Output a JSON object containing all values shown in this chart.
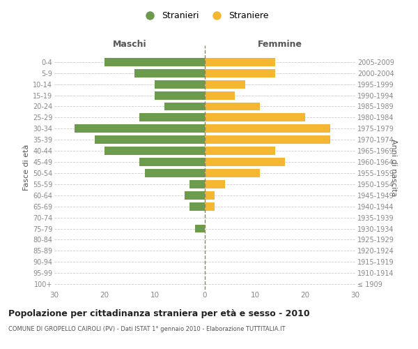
{
  "age_groups": [
    "0-4",
    "5-9",
    "10-14",
    "15-19",
    "20-24",
    "25-29",
    "30-34",
    "35-39",
    "40-44",
    "45-49",
    "50-54",
    "55-59",
    "60-64",
    "65-69",
    "70-74",
    "75-79",
    "80-84",
    "85-89",
    "90-94",
    "95-99",
    "100+"
  ],
  "birth_years": [
    "2005-2009",
    "2000-2004",
    "1995-1999",
    "1990-1994",
    "1985-1989",
    "1980-1984",
    "1975-1979",
    "1970-1974",
    "1965-1969",
    "1960-1964",
    "1955-1959",
    "1950-1954",
    "1945-1949",
    "1940-1944",
    "1935-1939",
    "1930-1934",
    "1925-1929",
    "1920-1924",
    "1915-1919",
    "1910-1914",
    "≤ 1909"
  ],
  "maschi": [
    20,
    14,
    10,
    10,
    8,
    13,
    26,
    22,
    20,
    13,
    12,
    3,
    4,
    3,
    0,
    2,
    0,
    0,
    0,
    0,
    0
  ],
  "femmine": [
    14,
    14,
    8,
    6,
    11,
    20,
    25,
    25,
    14,
    16,
    11,
    4,
    2,
    2,
    0,
    0,
    0,
    0,
    0,
    0,
    0
  ],
  "maschi_color": "#6d9b4e",
  "femmine_color": "#f5b731",
  "title": "Popolazione per cittadinanza straniera per età e sesso - 2010",
  "subtitle": "COMUNE DI GROPELLO CAIROLI (PV) - Dati ISTAT 1° gennaio 2010 - Elaborazione TUTTITALIA.IT",
  "xlabel_left": "Maschi",
  "xlabel_right": "Femmine",
  "ylabel_left": "Fasce di età",
  "ylabel_right": "Anni di nascita",
  "legend_maschi": "Stranieri",
  "legend_femmine": "Straniere",
  "xlim": 30,
  "background_color": "#ffffff",
  "grid_color": "#cccccc",
  "bar_height": 0.75,
  "label_color": "#888888"
}
